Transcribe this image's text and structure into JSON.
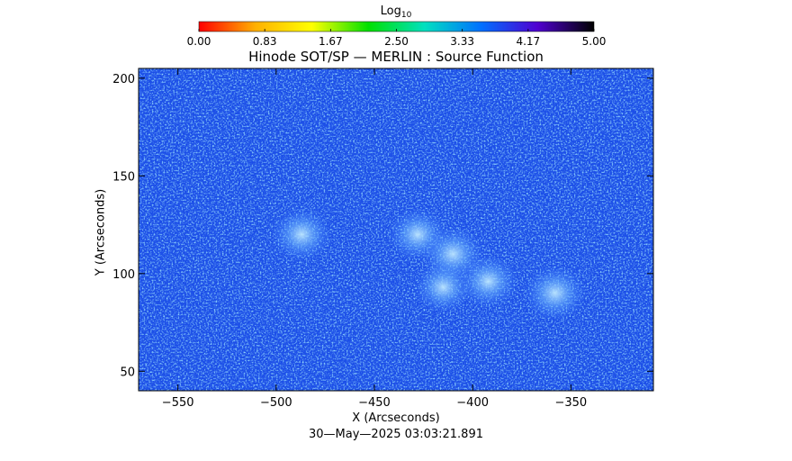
{
  "colorbar": {
    "title_main": "Log",
    "title_sub": "10",
    "ticks": [
      "0.00",
      "0.83",
      "1.67",
      "2.50",
      "3.33",
      "4.17",
      "5.00"
    ],
    "range": [
      0,
      5
    ],
    "colors": [
      "#ff0000",
      "#ffb000",
      "#ffff00",
      "#00e000",
      "#00e0c0",
      "#0070ff",
      "#5000d0",
      "#000000"
    ]
  },
  "chart_data": {
    "type": "heatmap",
    "title": "Hinode SOT/SP — MERLIN : Source Function",
    "xlabel": "X (Arcseconds)",
    "ylabel": "Y (Arcseconds)",
    "xlim": [
      -570,
      -308
    ],
    "ylim": [
      40,
      205
    ],
    "x_ticks": [
      -550,
      -500,
      -450,
      -400,
      -350
    ],
    "y_ticks": [
      50,
      100,
      150,
      200
    ],
    "x_tick_labels": [
      "−550",
      "−500",
      "−450",
      "−400",
      "−350"
    ],
    "y_tick_labels": [
      "50",
      "100",
      "150",
      "200"
    ],
    "colorbar_label": "Log10",
    "value_range": [
      0,
      5
    ],
    "background_color": "#1a4de8",
    "bright_regions": [
      {
        "x": -487,
        "y": 120,
        "value": 3.1
      },
      {
        "x": -428,
        "y": 120,
        "value": 3.2
      },
      {
        "x": -410,
        "y": 110,
        "value": 2.9
      },
      {
        "x": -392,
        "y": 96,
        "value": 3.1
      },
      {
        "x": -358,
        "y": 90,
        "value": 2.9
      },
      {
        "x": -415,
        "y": 93,
        "value": 3.3
      }
    ]
  },
  "timestamp": "30—May—2025 03:03:21.891"
}
